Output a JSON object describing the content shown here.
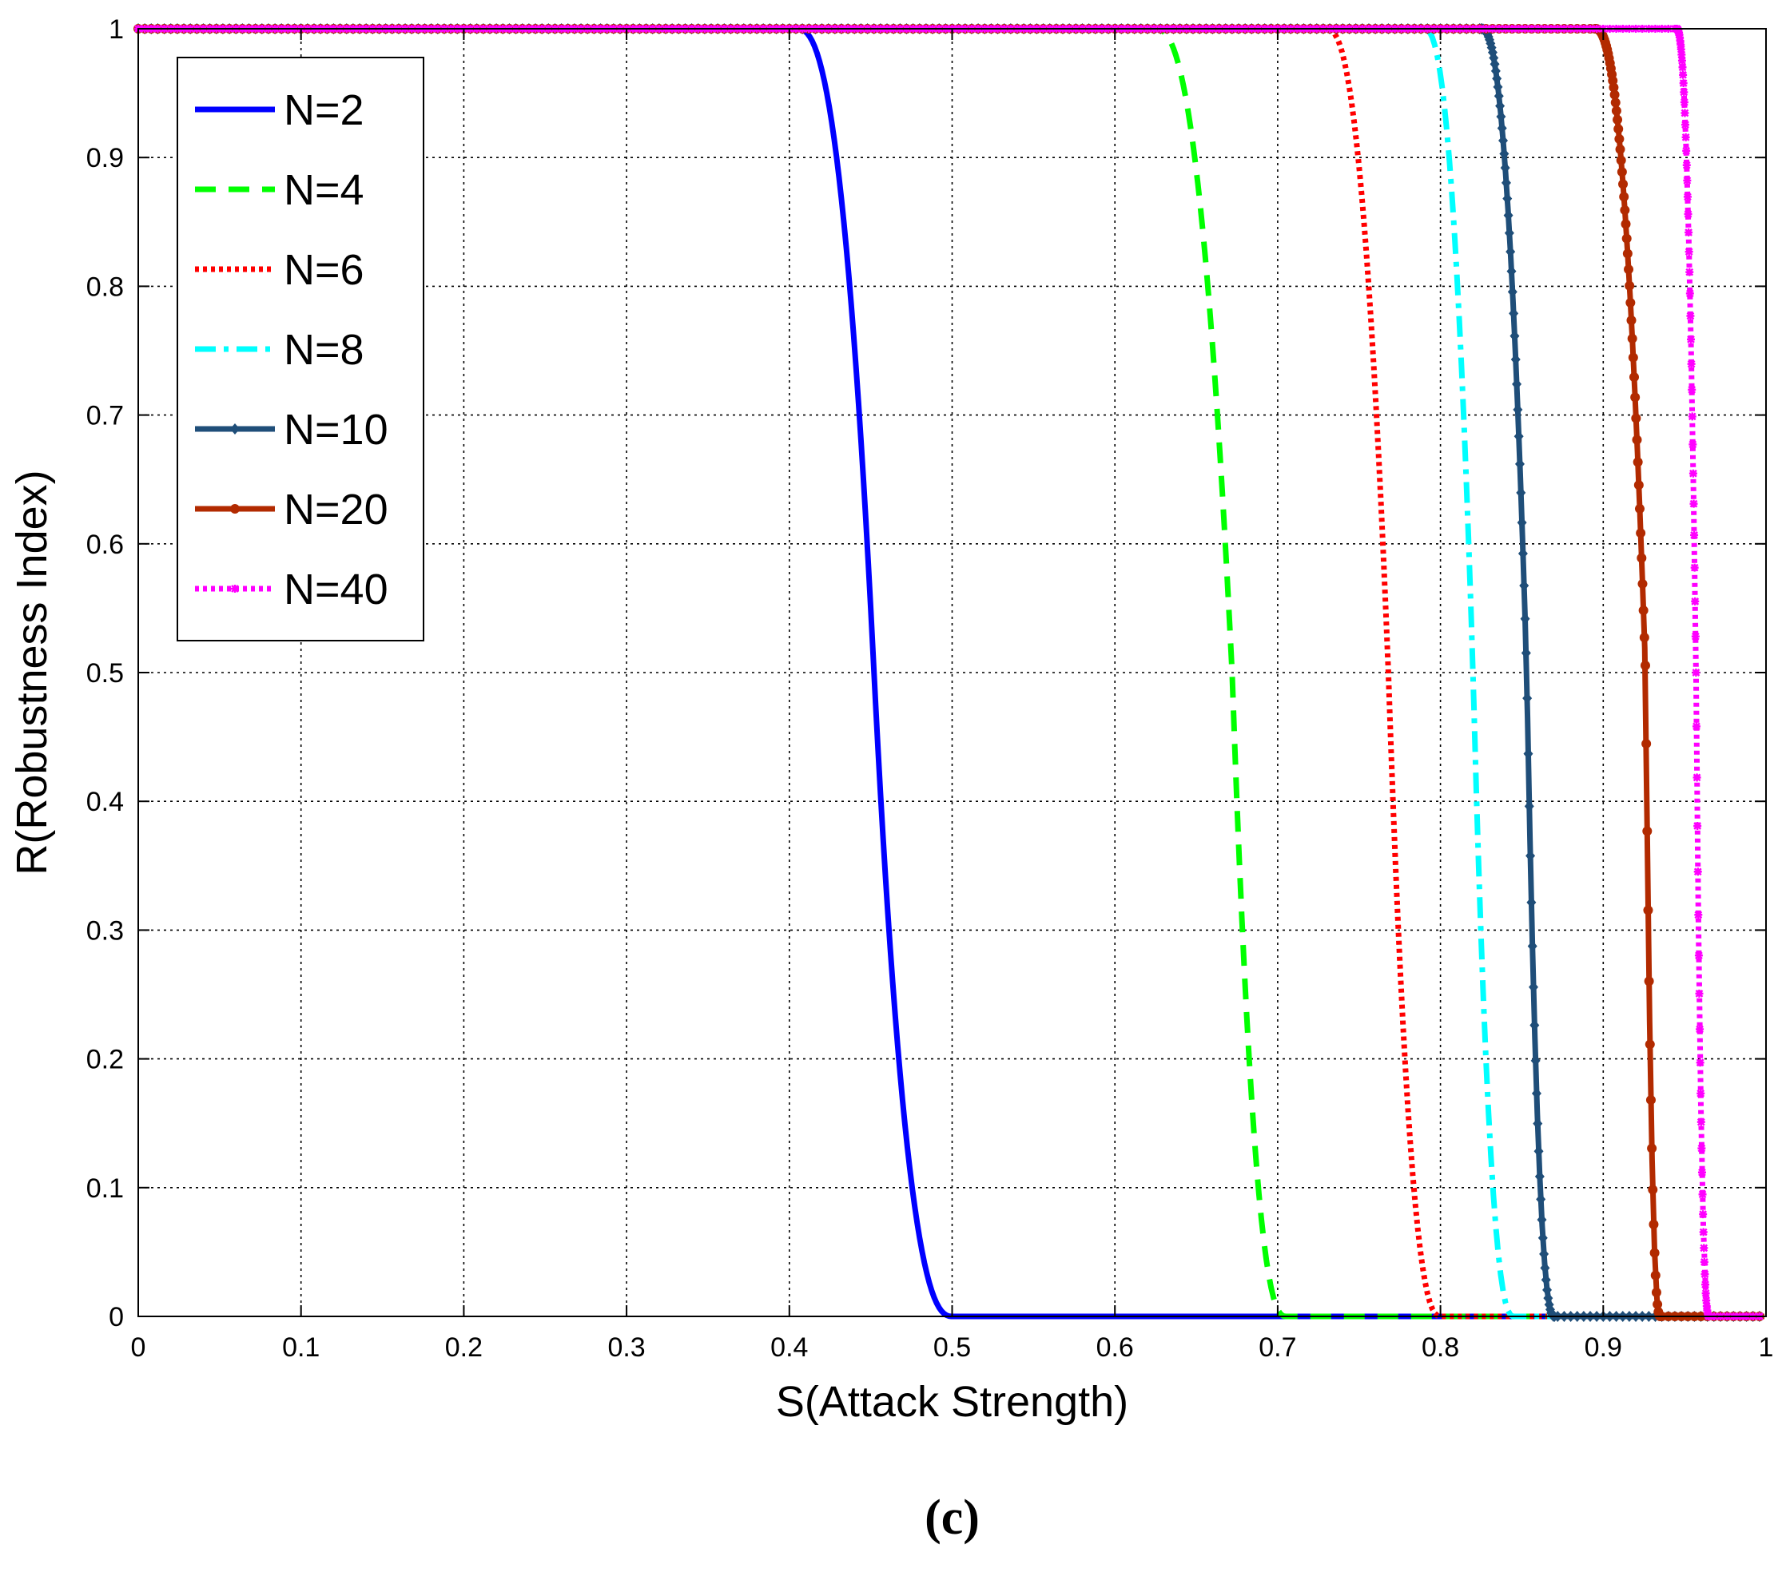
{
  "chart_data": {
    "type": "line",
    "title": "",
    "xlabel": "S(Attack Strength)",
    "ylabel": "R(Robustness Index)",
    "caption": "(c)",
    "xlim": [
      0,
      1
    ],
    "ylim": [
      0,
      1
    ],
    "xticks": [
      0,
      0.1,
      0.2,
      0.3,
      0.4,
      0.5,
      0.6,
      0.7,
      0.8,
      0.9,
      1
    ],
    "yticks": [
      0,
      0.1,
      0.2,
      0.3,
      0.4,
      0.5,
      0.6,
      0.7,
      0.8,
      0.9,
      1
    ],
    "xtick_labels": [
      "0",
      "0.1",
      "0.2",
      "0.3",
      "0.4",
      "0.5",
      "0.6",
      "0.7",
      "0.8",
      "0.9",
      "1"
    ],
    "ytick_labels": [
      "0",
      "0.1",
      "0.2",
      "0.3",
      "0.4",
      "0.5",
      "0.6",
      "0.7",
      "0.8",
      "0.9",
      "1"
    ],
    "grid": true,
    "legend_position": "top-left",
    "series": [
      {
        "name": "N=2",
        "color": "#0000ff",
        "style": "solid",
        "marker": "none",
        "x_start": 0.405,
        "x_end": 0.5,
        "x_mid": 0.452
      },
      {
        "name": "N=4",
        "color": "#00ff00",
        "style": "dashed",
        "marker": "none",
        "x_start": 0.625,
        "x_end": 0.705,
        "x_mid": 0.672
      },
      {
        "name": "N=6",
        "color": "#ff0000",
        "style": "dotted",
        "marker": "none",
        "x_start": 0.73,
        "x_end": 0.8,
        "x_mid": 0.768
      },
      {
        "name": "N=8",
        "color": "#00ffff",
        "style": "dashdot",
        "marker": "none",
        "x_start": 0.79,
        "x_end": 0.845,
        "x_mid": 0.82
      },
      {
        "name": "N=10",
        "color": "#1f4e79",
        "style": "solid",
        "marker": "diamond",
        "x_start": 0.825,
        "x_end": 0.87,
        "x_mid": 0.853
      },
      {
        "name": "N=20",
        "color": "#b22a00",
        "style": "solid",
        "marker": "circle",
        "x_start": 0.895,
        "x_end": 0.935,
        "x_mid": 0.926
      },
      {
        "name": "N=40",
        "color": "#ff00ff",
        "style": "dotted",
        "marker": "star",
        "x_start": 0.945,
        "x_end": 0.965,
        "x_mid": 0.957
      }
    ]
  }
}
